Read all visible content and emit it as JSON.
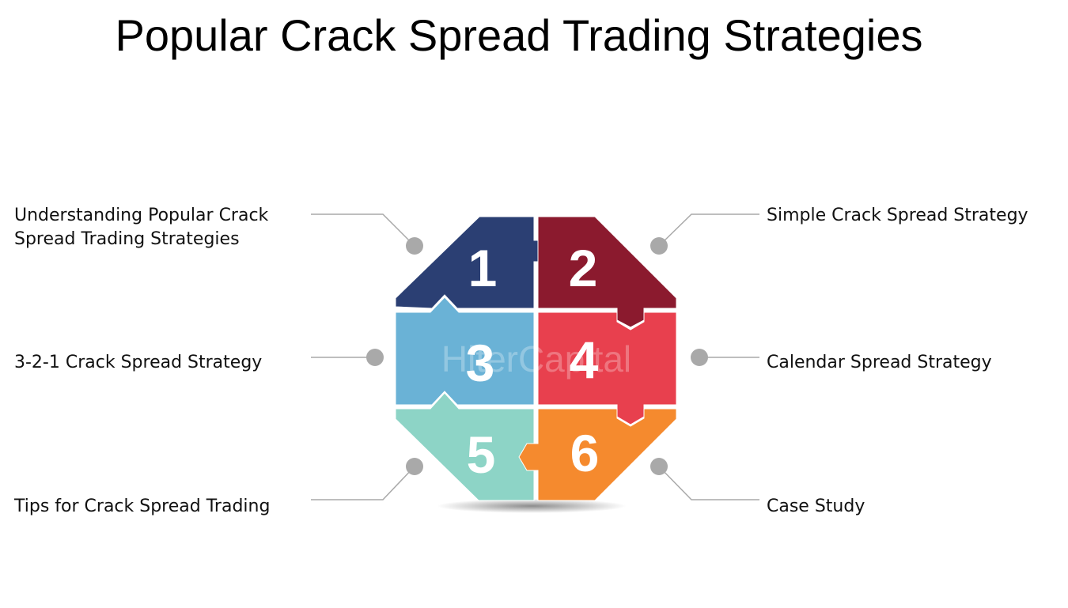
{
  "title": "Popular Crack Spread Trading Strategies",
  "watermark": "HiterCapital",
  "pieces": [
    {
      "number": "1",
      "label": "Understanding Popular Crack",
      "label_line2": "Spread Trading Strategies",
      "color": "#2B3F73"
    },
    {
      "number": "2",
      "label": "Simple Crack Spread Strategy",
      "color": "#8B1A2E"
    },
    {
      "number": "3",
      "label": "3-2-1 Crack Spread Strategy",
      "color": "#6AB2D6"
    },
    {
      "number": "4",
      "label": "Calendar Spread Strategy",
      "color": "#E8404E"
    },
    {
      "number": "5",
      "label": "Tips for Crack Spread Trading",
      "color": "#8DD4C6"
    },
    {
      "number": "6",
      "label": "Case Study",
      "color": "#F58A2E"
    }
  ],
  "connector_color": "#A9A9A9"
}
